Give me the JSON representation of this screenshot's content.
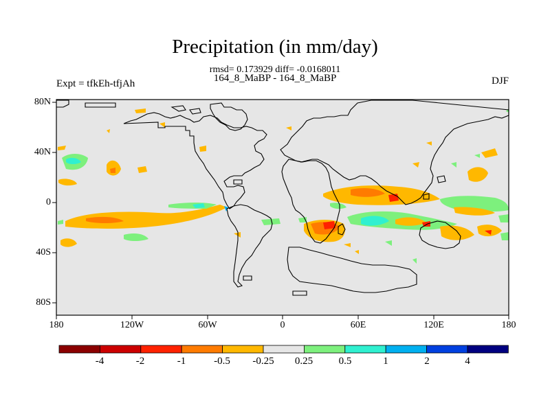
{
  "title": "Precipitation (in mm/day)",
  "stats": "rmsd= 0.173929 diff= -0.0168011",
  "subtitle": "164_8_MaBP - 164_8_MaBP",
  "left_label": "Expt = tfkEh-tfjAh",
  "right_label": "DJF",
  "y_ticks": [
    "80N",
    "40N",
    "0",
    "40S",
    "80S"
  ],
  "x_ticks": [
    "180",
    "120W",
    "60W",
    "0",
    "60E",
    "120E",
    "180"
  ],
  "colorbar": {
    "labels": [
      "-4",
      "-2",
      "-1",
      "-0.5",
      "-0.25",
      "0.25",
      "0.5",
      "1",
      "2",
      "4"
    ],
    "colors": [
      "#8b0000",
      "#cc0000",
      "#ff2200",
      "#ff7b00",
      "#ffb800",
      "#e6e6e6",
      "#7df07d",
      "#30f0d0",
      "#00b0f0",
      "#0040e0",
      "#000080"
    ]
  },
  "palette": {
    "land_background": "#e6e6e6",
    "orange_light": "#ffb800",
    "orange_dark": "#ff7b00",
    "red": "#ff2200",
    "green": "#7df07d",
    "cyan": "#30f0d0",
    "blue": "#00b0f0"
  }
}
